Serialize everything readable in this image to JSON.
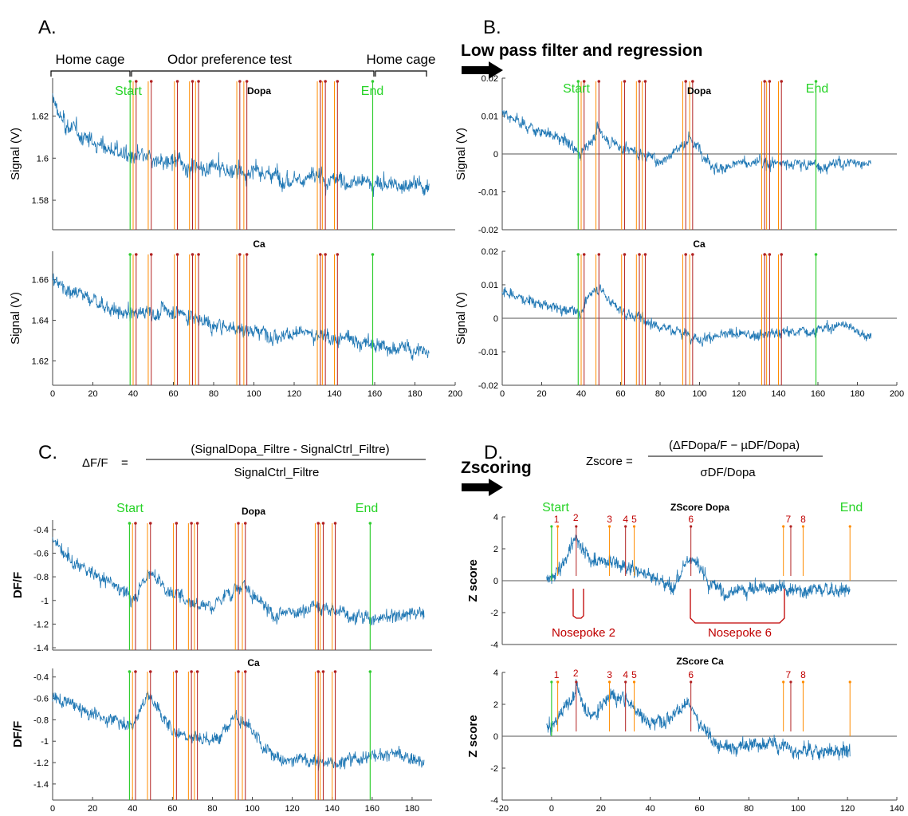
{
  "panels": {
    "A": {
      "label": "A."
    },
    "B": {
      "label": "B.",
      "step_label": "Low pass filter and regression"
    },
    "C": {
      "label": "C.",
      "formula_lhs": "ΔF/F",
      "formula_eq": "=",
      "formula_num": "(SignalDopa_Filtre - SignalCtrl_Filtre)",
      "formula_den": "SignalCtrl_Filtre"
    },
    "D": {
      "label": "D.",
      "step_label": "Zscoring",
      "formula_lhs": "Zscore =",
      "formula_num": "(ΔFDopa/F − µDF/Dopa)",
      "formula_den": "σDF/Dopa"
    }
  },
  "phases": [
    "Home cage",
    "Odor preference test",
    "Home cage"
  ],
  "event_labels": {
    "start": "Start",
    "end": "End"
  },
  "nosepokes": [
    "Nosepoke 2",
    "Nosepoke 6"
  ],
  "colors": {
    "trace": "#1f77b4",
    "start_end": "#32cd32",
    "entry": "#ff8c00",
    "exit": "#b22222",
    "annotation": "#c00000"
  },
  "chart_data": [
    {
      "id": "A1",
      "type": "line",
      "title": "Dopa",
      "ylabel": "Signal (V)",
      "xlim": [
        0,
        200
      ],
      "ylim": [
        1.566,
        1.638
      ],
      "yticks": [
        1.58,
        1.6,
        1.62
      ],
      "ytick_labels": [
        "1.58",
        "1.6",
        "1.62"
      ],
      "xticks": [],
      "xtick_labels": [],
      "events": "full",
      "zero_line": false,
      "trend": [
        [
          0,
          1.628
        ],
        [
          5,
          1.617
        ],
        [
          15,
          1.61
        ],
        [
          30,
          1.604
        ],
        [
          40,
          1.6
        ],
        [
          80,
          1.595
        ],
        [
          120,
          1.591
        ],
        [
          160,
          1.588
        ],
        [
          187,
          1.587
        ]
      ]
    },
    {
      "id": "A2",
      "type": "line",
      "title": "Ca",
      "ylabel": "Signal (V)",
      "xlim": [
        0,
        200
      ],
      "ylim": [
        1.608,
        1.674
      ],
      "yticks": [
        1.62,
        1.64,
        1.66
      ],
      "ytick_labels": [
        "1.62",
        "1.64",
        "1.66"
      ],
      "xticks": [
        0,
        20,
        40,
        60,
        80,
        100,
        120,
        140,
        160,
        180,
        200
      ],
      "xtick_labels": [
        "0",
        "20",
        "40",
        "60",
        "80",
        "100",
        "120",
        "140",
        "160",
        "180",
        "200"
      ],
      "events": "full",
      "zero_line": false,
      "trend": [
        [
          0,
          1.66
        ],
        [
          20,
          1.65
        ],
        [
          35,
          1.643
        ],
        [
          60,
          1.645
        ],
        [
          80,
          1.638
        ],
        [
          100,
          1.635
        ],
        [
          140,
          1.632
        ],
        [
          160,
          1.628
        ],
        [
          187,
          1.624
        ]
      ]
    },
    {
      "id": "B1",
      "type": "line",
      "title": "Dopa",
      "ylabel": "Signal (V)",
      "xlim": [
        0,
        200
      ],
      "ylim": [
        -0.02,
        0.02
      ],
      "yticks": [
        -0.02,
        -0.01,
        0,
        0.01,
        0.02
      ],
      "ytick_labels": [
        "-0.02",
        "-0.01",
        "0",
        "0.01",
        "0.02"
      ],
      "xticks": [],
      "xtick_labels": [],
      "events": "full",
      "zero_line": true,
      "trend": [
        [
          0,
          0.012
        ],
        [
          10,
          0.008
        ],
        [
          30,
          0.004
        ],
        [
          40,
          0.0
        ],
        [
          48,
          0.006
        ],
        [
          60,
          0.002
        ],
        [
          80,
          -0.002
        ],
        [
          95,
          0.004
        ],
        [
          110,
          -0.004
        ],
        [
          130,
          -0.002
        ],
        [
          160,
          -0.003
        ],
        [
          187,
          -0.002
        ]
      ]
    },
    {
      "id": "B2",
      "type": "line",
      "title": "Ca",
      "ylabel": "Signal (V)",
      "xlim": [
        0,
        200
      ],
      "ylim": [
        -0.02,
        0.02
      ],
      "yticks": [
        -0.02,
        -0.01,
        0,
        0.01,
        0.02
      ],
      "ytick_labels": [
        "-0.02",
        "-0.01",
        "0",
        "0.01",
        "0.02"
      ],
      "xticks": [
        0,
        20,
        40,
        60,
        80,
        100,
        120,
        140,
        160,
        180,
        200
      ],
      "xtick_labels": [
        "0",
        "20",
        "40",
        "60",
        "80",
        "100",
        "120",
        "140",
        "160",
        "180",
        "200"
      ],
      "events": "full",
      "zero_line": true,
      "trend": [
        [
          0,
          0.008
        ],
        [
          20,
          0.004
        ],
        [
          40,
          0.002
        ],
        [
          48,
          0.01
        ],
        [
          60,
          0.002
        ],
        [
          80,
          -0.002
        ],
        [
          100,
          -0.006
        ],
        [
          120,
          -0.005
        ],
        [
          150,
          -0.004
        ],
        [
          175,
          -0.002
        ],
        [
          187,
          -0.006
        ]
      ]
    },
    {
      "id": "C1",
      "type": "line",
      "title": "Dopa",
      "ylabel": "DF/F",
      "xlim": [
        0,
        190
      ],
      "ylim": [
        -1.42,
        -0.32
      ],
      "yticks": [
        -1.4,
        -1.2,
        -1,
        -0.8,
        -0.6,
        -0.4
      ],
      "ytick_labels": [
        "-1.4",
        "-1.2",
        "-1",
        "-0.8",
        "-0.6",
        "-0.4"
      ],
      "xticks": [],
      "xtick_labels": [],
      "events": "full",
      "zero_line": false,
      "trend": [
        [
          0,
          -0.45
        ],
        [
          10,
          -0.7
        ],
        [
          30,
          -0.85
        ],
        [
          40,
          -1.0
        ],
        [
          48,
          -0.75
        ],
        [
          60,
          -0.95
        ],
        [
          80,
          -1.05
        ],
        [
          95,
          -0.85
        ],
        [
          110,
          -1.15
        ],
        [
          130,
          -1.05
        ],
        [
          160,
          -1.15
        ],
        [
          186,
          -1.1
        ]
      ]
    },
    {
      "id": "C2",
      "type": "line",
      "title": "Ca",
      "ylabel": "DF/F",
      "xlim": [
        0,
        190
      ],
      "ylim": [
        -1.55,
        -0.32
      ],
      "yticks": [
        -1.4,
        -1.2,
        -1,
        -0.8,
        -0.6,
        -0.4
      ],
      "ytick_labels": [
        "-1.4",
        "-1.2",
        "-1",
        "-0.8",
        "-0.6",
        "-0.4"
      ],
      "xticks": [
        0,
        20,
        40,
        60,
        80,
        100,
        120,
        140,
        160,
        180
      ],
      "xtick_labels": [
        "0",
        "20",
        "40",
        "60",
        "80",
        "100",
        "120",
        "140",
        "160",
        "180"
      ],
      "events": "full",
      "zero_line": false,
      "trend": [
        [
          0,
          -0.6
        ],
        [
          20,
          -0.75
        ],
        [
          40,
          -0.85
        ],
        [
          48,
          -0.55
        ],
        [
          60,
          -0.9
        ],
        [
          80,
          -1.0
        ],
        [
          92,
          -0.75
        ],
        [
          110,
          -1.15
        ],
        [
          140,
          -1.2
        ],
        [
          170,
          -1.1
        ],
        [
          186,
          -1.2
        ]
      ]
    },
    {
      "id": "D1",
      "type": "line",
      "title": "ZScore Dopa",
      "ylabel": "Z score",
      "xlim": [
        -20,
        140
      ],
      "ylim": [
        -4,
        4
      ],
      "yticks": [
        -4,
        -2,
        0,
        2,
        4
      ],
      "ytick_labels": [
        "-4",
        "-2",
        "0",
        "2",
        "4"
      ],
      "xticks": [],
      "xtick_labels": [],
      "events": "stub",
      "zero_line": true,
      "trend": [
        [
          0,
          0.0
        ],
        [
          5,
          1.0
        ],
        [
          10,
          2.8
        ],
        [
          15,
          1.4
        ],
        [
          25,
          1.2
        ],
        [
          32,
          0.8
        ],
        [
          40,
          0.4
        ],
        [
          48,
          -0.4
        ],
        [
          56,
          1.6
        ],
        [
          62,
          0.2
        ],
        [
          70,
          -0.8
        ],
        [
          85,
          -0.4
        ],
        [
          100,
          -0.5
        ],
        [
          121,
          -0.6
        ]
      ]
    },
    {
      "id": "D2",
      "type": "line",
      "title": "ZScore Ca",
      "ylabel": "Z score",
      "xlim": [
        -20,
        140
      ],
      "ylim": [
        -4,
        4
      ],
      "yticks": [
        -4,
        -2,
        0,
        2,
        4
      ],
      "ytick_labels": [
        "-4",
        "-2",
        "0",
        "2",
        "4"
      ],
      "xticks": [
        -20,
        0,
        20,
        40,
        60,
        80,
        100,
        120,
        140
      ],
      "xtick_labels": [
        "-20",
        "0",
        "20",
        "40",
        "60",
        "80",
        "100",
        "120",
        "140"
      ],
      "events": "stub",
      "zero_line": true,
      "trend": [
        [
          0,
          0.5
        ],
        [
          10,
          3.0
        ],
        [
          16,
          1.2
        ],
        [
          24,
          2.6
        ],
        [
          30,
          2.4
        ],
        [
          40,
          0.8
        ],
        [
          55,
          2.0
        ],
        [
          62,
          0.4
        ],
        [
          70,
          -0.8
        ],
        [
          85,
          -0.4
        ],
        [
          100,
          -0.8
        ],
        [
          121,
          -1.0
        ]
      ]
    }
  ]
}
